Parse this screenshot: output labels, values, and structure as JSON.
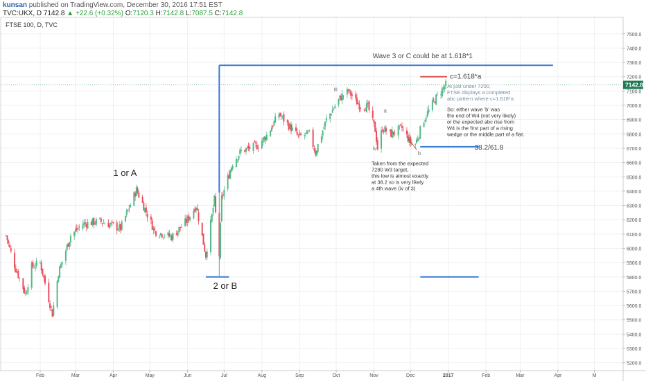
{
  "header": {
    "author": "kunsan",
    "published": "published on TradingView.com, December 30, 2016 17:51 EST",
    "symbol": "TVC:UKX, D",
    "last": "7142.8",
    "change_arrow": "▲",
    "change": "+22.6 (+0.32%)",
    "o_label": "O:",
    "o": "7120.3",
    "h_label": "H:",
    "h": "7142.8",
    "l_label": "L:",
    "l": "7087.5",
    "c_label": "C:",
    "c": "7142.8"
  },
  "chart_data": {
    "type": "candlestick",
    "title": "FTSE 100, D, TVC",
    "ylim": [
      5150,
      7620
    ],
    "y_ticks": [
      5200,
      5300,
      5400,
      5500,
      5600,
      5700,
      5800,
      5900,
      6000,
      6100,
      6200,
      6300,
      6400,
      6500,
      6600,
      6700,
      6800,
      6900,
      7000,
      7100,
      7200,
      7300,
      7400,
      7500
    ],
    "x_ticks": [
      "Feb",
      "Mar",
      "Apr",
      "May",
      "Jun",
      "Jul",
      "Aug",
      "Sep",
      "Oct",
      "Nov",
      "Dec",
      "2017",
      "Feb",
      "Mar",
      "Apr",
      "M"
    ],
    "last_price_label": "7142.8",
    "price_path_approx": [
      [
        "2016-01-04",
        6090
      ],
      [
        "2016-01-11",
        5880
      ],
      [
        "2016-01-20",
        5680
      ],
      [
        "2016-01-25",
        5870
      ],
      [
        "2016-02-01",
        5900
      ],
      [
        "2016-02-11",
        5540
      ],
      [
        "2016-02-16",
        5830
      ],
      [
        "2016-02-26",
        6090
      ],
      [
        "2016-03-07",
        6170
      ],
      [
        "2016-03-21",
        6190
      ],
      [
        "2016-04-07",
        6140
      ],
      [
        "2016-04-20",
        6410
      ],
      [
        "2016-05-05",
        6120
      ],
      [
        "2016-05-19",
        6080
      ],
      [
        "2016-06-01",
        6200
      ],
      [
        "2016-06-08",
        6300
      ],
      [
        "2016-06-16",
        5950
      ],
      [
        "2016-06-23",
        6340
      ],
      [
        "2016-06-27",
        5950
      ],
      [
        "2016-06-29",
        6350
      ],
      [
        "2016-07-08",
        6600
      ],
      [
        "2016-07-15",
        6680
      ],
      [
        "2016-07-29",
        6720
      ],
      [
        "2016-08-05",
        6790
      ],
      [
        "2016-08-15",
        6940
      ],
      [
        "2016-08-31",
        6780
      ],
      [
        "2016-09-09",
        6800
      ],
      [
        "2016-09-14",
        6670
      ],
      [
        "2016-09-23",
        6900
      ],
      [
        "2016-10-04",
        7050
      ],
      [
        "2016-10-11",
        7100
      ],
      [
        "2016-10-20",
        7000
      ],
      [
        "2016-10-27",
        6990
      ],
      [
        "2016-11-02",
        6830
      ],
      [
        "2016-11-04",
        6700
      ],
      [
        "2016-11-08",
        6840
      ],
      [
        "2016-11-15",
        6800
      ],
      [
        "2016-11-24",
        6840
      ],
      [
        "2016-12-01",
        6740
      ],
      [
        "2016-12-05",
        6730
      ],
      [
        "2016-12-12",
        6900
      ],
      [
        "2016-12-21",
        7040
      ],
      [
        "2016-12-30",
        7143
      ]
    ],
    "horizontal_levels": [
      {
        "label": "Wave 3 or C could be at 1.618*1",
        "value": 7280,
        "x_from": "2016-06-27",
        "x_to": "2017-03-28"
      },
      {
        "label": "c=1.618*a",
        "value": 7200,
        "x_from": "2016-12-09",
        "x_to": "2016-12-31"
      },
      {
        "label": "38.2/61.8",
        "value": 6710,
        "x_from": "2016-12-09",
        "x_to": "2017-01-26"
      },
      {
        "label": "",
        "value": 5800,
        "x_from": "2016-12-09",
        "x_to": "2017-01-26"
      },
      {
        "label": "2 or B",
        "value": 5800,
        "x_from": "2016-06-16",
        "x_to": "2016-07-05"
      }
    ]
  },
  "annotations": {
    "wave1": "1 or A",
    "wave2": "2 or B",
    "wave3_level": "Wave 3 or C could be at 1.618*1",
    "c_target": "c=1.618*a",
    "fib": "38.2/61.8",
    "roman_iii": "iii",
    "roman_iv": "iv",
    "letter_a": "a",
    "letter_b": "b",
    "note1": [
      "At just under 7200,",
      "FTSE displays a completed",
      "abc pattern where c=1.618*a"
    ],
    "note2": [
      "So: either wave 'b' was",
      "the end of W4 (not very likely)",
      "or the expected abc rise from",
      "W4 is the first part of a rising",
      "wedge or the middle part of a flat."
    ],
    "note3": [
      "Taken from the expected",
      "7280 W3 target,",
      "this low is almost exactly",
      "at 38.2 so is very likely",
      "a 4th wave (iv of 3)"
    ]
  },
  "colors": {
    "up": "#53b987",
    "down": "#eb4d5c",
    "level": "#3a7bd5",
    "target": "#d9534f",
    "price_label_bg": "#1f7a55",
    "grid": "#eef0f3",
    "axis_text": "#555555"
  }
}
